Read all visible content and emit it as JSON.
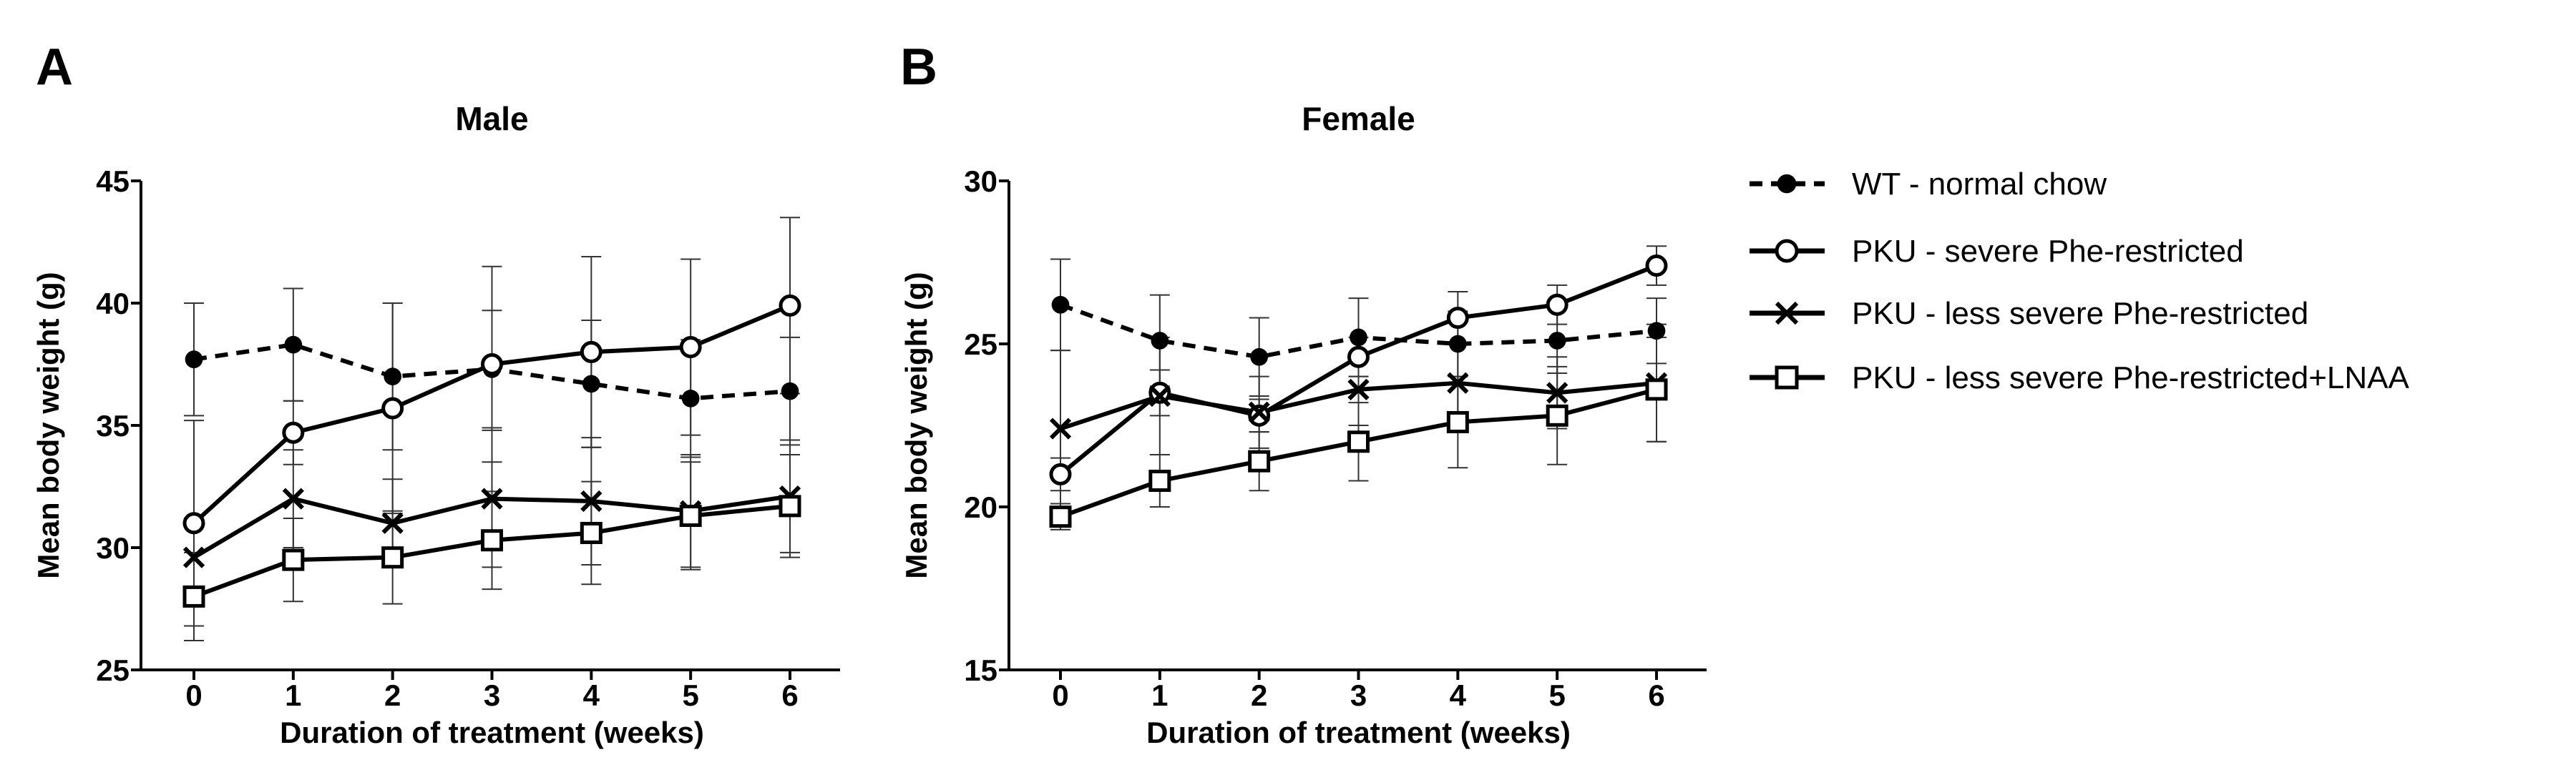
{
  "chart_data": [
    {
      "type": "line",
      "panel_label": "A",
      "title": "Male",
      "xlabel": "Duration of treatment (weeks)",
      "ylabel": "Mean body weight (g)",
      "x": [
        0,
        1,
        2,
        3,
        4,
        5,
        6
      ],
      "xticks": [
        "0",
        "1",
        "2",
        "3",
        "4",
        "5",
        "6"
      ],
      "yticks": [
        "25",
        "30",
        "35",
        "40",
        "45"
      ],
      "ylim": [
        25,
        45
      ],
      "grid": false,
      "series": [
        {
          "name": "WT - normal chow",
          "marker": "filled-circle",
          "dashed": true,
          "values": [
            37.7,
            38.3,
            37.0,
            37.3,
            36.7,
            36.1,
            36.4
          ],
          "errors": [
            2.3,
            2.3,
            3.0,
            2.4,
            2.6,
            2.4,
            2.2
          ]
        },
        {
          "name": "PKU - severe Phe-restricted",
          "marker": "open-circle",
          "dashed": false,
          "values": [
            31.0,
            34.7,
            35.7,
            37.5,
            38.0,
            38.2,
            39.9
          ],
          "errors": [
            4.2,
            1.3,
            4.3,
            4.0,
            3.9,
            3.6,
            3.6
          ]
        },
        {
          "name": "PKU - less severe Phe-restricted",
          "marker": "cross",
          "dashed": false,
          "values": [
            29.6,
            32.0,
            31.0,
            32.0,
            31.9,
            31.5,
            32.1
          ],
          "errors": [
            1.6,
            2.0,
            1.8,
            2.8,
            2.6,
            2.3,
            2.3
          ]
        },
        {
          "name": "PKU - less severe Phe-restricted+LNAA",
          "marker": "open-square",
          "dashed": false,
          "values": [
            28.0,
            29.5,
            29.6,
            30.3,
            30.6,
            31.3,
            31.7
          ],
          "errors": [
            1.8,
            1.7,
            1.9,
            2.0,
            2.1,
            2.2,
            2.1
          ]
        }
      ]
    },
    {
      "type": "line",
      "panel_label": "B",
      "title": "Female",
      "xlabel": "Duration of treatment (weeks)",
      "ylabel": "Mean body weight (g)",
      "x": [
        0,
        1,
        2,
        3,
        4,
        5,
        6
      ],
      "xticks": [
        "0",
        "1",
        "2",
        "3",
        "4",
        "5",
        "6"
      ],
      "yticks": [
        "15",
        "20",
        "25",
        "30"
      ],
      "ylim": [
        15,
        30
      ],
      "grid": false,
      "series": [
        {
          "name": "WT - normal chow",
          "marker": "filled-circle",
          "dashed": true,
          "values": [
            26.2,
            25.1,
            24.6,
            25.2,
            25.0,
            25.1,
            25.4
          ],
          "errors": [
            1.4,
            1.4,
            1.2,
            1.2,
            1.0,
            1.0,
            1.0
          ]
        },
        {
          "name": "PKU - severe Phe-restricted",
          "marker": "open-circle",
          "dashed": false,
          "values": [
            21.0,
            23.5,
            22.8,
            24.6,
            25.8,
            26.2,
            27.4
          ],
          "errors": [
            0.5,
            0.7,
            0.5,
            0.6,
            0.8,
            0.6,
            0.6
          ]
        },
        {
          "name": "PKU - less severe Phe-restricted",
          "marker": "cross",
          "dashed": false,
          "values": [
            22.4,
            23.4,
            22.9,
            23.6,
            23.8,
            23.5,
            23.8
          ],
          "errors": [
            2.4,
            1.8,
            1.1,
            1.1,
            1.2,
            1.1,
            1.8
          ]
        },
        {
          "name": "PKU - less severe Phe-restricted+LNAA",
          "marker": "open-square",
          "dashed": false,
          "values": [
            19.7,
            20.8,
            21.4,
            22.0,
            22.6,
            22.8,
            23.6
          ],
          "errors": [
            0.4,
            0.8,
            0.9,
            1.2,
            1.4,
            1.5,
            1.6
          ]
        }
      ]
    }
  ],
  "legend": {
    "placement": "right",
    "items": [
      "WT - normal chow",
      "PKU - severe Phe-restricted",
      "PKU - less severe Phe-restricted",
      "PKU - less severe Phe-restricted+LNAA"
    ]
  }
}
